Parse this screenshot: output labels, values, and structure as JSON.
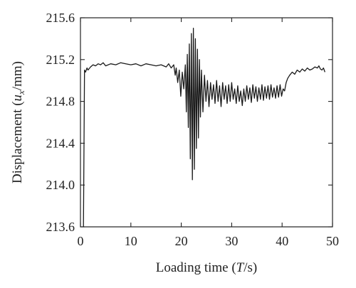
{
  "chart_data": {
    "type": "line",
    "title": "",
    "xlabel": {
      "prefix": "Loading time (",
      "var": "T",
      "suffix": "/s)"
    },
    "ylabel": {
      "prefix": "Displacement (",
      "var": "u",
      "sub": "x",
      "suffix": "/mm)"
    },
    "xlim": [
      0,
      50
    ],
    "ylim": [
      213.6,
      215.6
    ],
    "xticks": [
      "0",
      "10",
      "20",
      "30",
      "40",
      "50"
    ],
    "yticks": [
      "213.6",
      "214.0",
      "214.4",
      "214.8",
      "215.2",
      "215.6"
    ],
    "grid": false,
    "legend": "none",
    "series": [
      {
        "color": "#1a1a1a",
        "x": [
          0.6,
          0.8,
          1.0,
          1.3,
          1.5,
          2.0,
          2.5,
          3.0,
          3.5,
          4.0,
          4.5,
          5.0,
          6.0,
          7.0,
          8.0,
          9.0,
          10.0,
          11.0,
          12.0,
          13.0,
          14.0,
          15.0,
          16.0,
          17.0,
          17.5,
          18.0,
          18.5,
          18.8,
          19.0,
          19.3,
          19.6,
          19.9,
          20.2,
          20.5,
          20.8,
          21.0,
          21.2,
          21.4,
          21.6,
          21.8,
          22.0,
          22.2,
          22.4,
          22.6,
          22.8,
          23.0,
          23.2,
          23.4,
          23.6,
          23.8,
          24.0,
          24.3,
          24.6,
          24.9,
          25.2,
          25.5,
          25.8,
          26.1,
          26.4,
          26.7,
          27.0,
          27.3,
          27.6,
          27.9,
          28.2,
          28.5,
          28.8,
          29.1,
          29.4,
          29.7,
          30.0,
          30.3,
          30.6,
          30.9,
          31.2,
          31.5,
          31.8,
          32.1,
          32.4,
          32.7,
          33.0,
          33.3,
          33.6,
          33.9,
          34.2,
          34.5,
          34.8,
          35.1,
          35.4,
          35.7,
          36.0,
          36.3,
          36.6,
          36.9,
          37.2,
          37.5,
          37.8,
          38.1,
          38.4,
          38.7,
          39.0,
          39.3,
          39.6,
          39.9,
          40.2,
          40.5,
          40.8,
          41.1,
          41.5,
          42.0,
          42.5,
          43.0,
          43.5,
          44.0,
          44.5,
          45.0,
          45.5,
          46.0,
          46.5,
          47.0,
          47.3,
          47.6,
          47.9,
          48.2,
          48.5
        ],
        "y": [
          213.6,
          215.1,
          215.08,
          215.12,
          215.1,
          215.13,
          215.15,
          215.14,
          215.16,
          215.15,
          215.17,
          215.14,
          215.16,
          215.15,
          215.17,
          215.16,
          215.15,
          215.16,
          215.14,
          215.16,
          215.15,
          215.14,
          215.15,
          215.13,
          215.16,
          215.12,
          215.15,
          215.05,
          215.12,
          214.98,
          215.1,
          214.85,
          215.08,
          214.92,
          215.15,
          214.7,
          215.25,
          214.55,
          215.35,
          214.25,
          215.45,
          214.05,
          215.5,
          214.15,
          215.4,
          214.35,
          215.3,
          214.45,
          215.2,
          214.65,
          215.1,
          214.7,
          215.05,
          214.8,
          215.0,
          214.75,
          214.98,
          214.82,
          214.96,
          214.78,
          215.0,
          214.8,
          214.95,
          214.75,
          214.98,
          214.82,
          214.95,
          214.78,
          214.96,
          214.8,
          214.98,
          214.82,
          214.92,
          214.78,
          214.95,
          214.8,
          214.9,
          214.76,
          214.92,
          214.8,
          214.95,
          214.82,
          214.93,
          214.79,
          214.96,
          214.83,
          214.94,
          214.8,
          214.93,
          214.82,
          214.96,
          214.81,
          214.94,
          214.83,
          214.95,
          214.82,
          214.96,
          214.84,
          214.93,
          214.83,
          214.95,
          214.84,
          214.96,
          214.85,
          214.92,
          214.9,
          214.98,
          215.02,
          215.05,
          215.08,
          215.06,
          215.1,
          215.08,
          215.11,
          215.09,
          215.12,
          215.1,
          215.11,
          215.13,
          215.12,
          215.14,
          215.11,
          215.1,
          215.12,
          215.08
        ]
      }
    ]
  }
}
